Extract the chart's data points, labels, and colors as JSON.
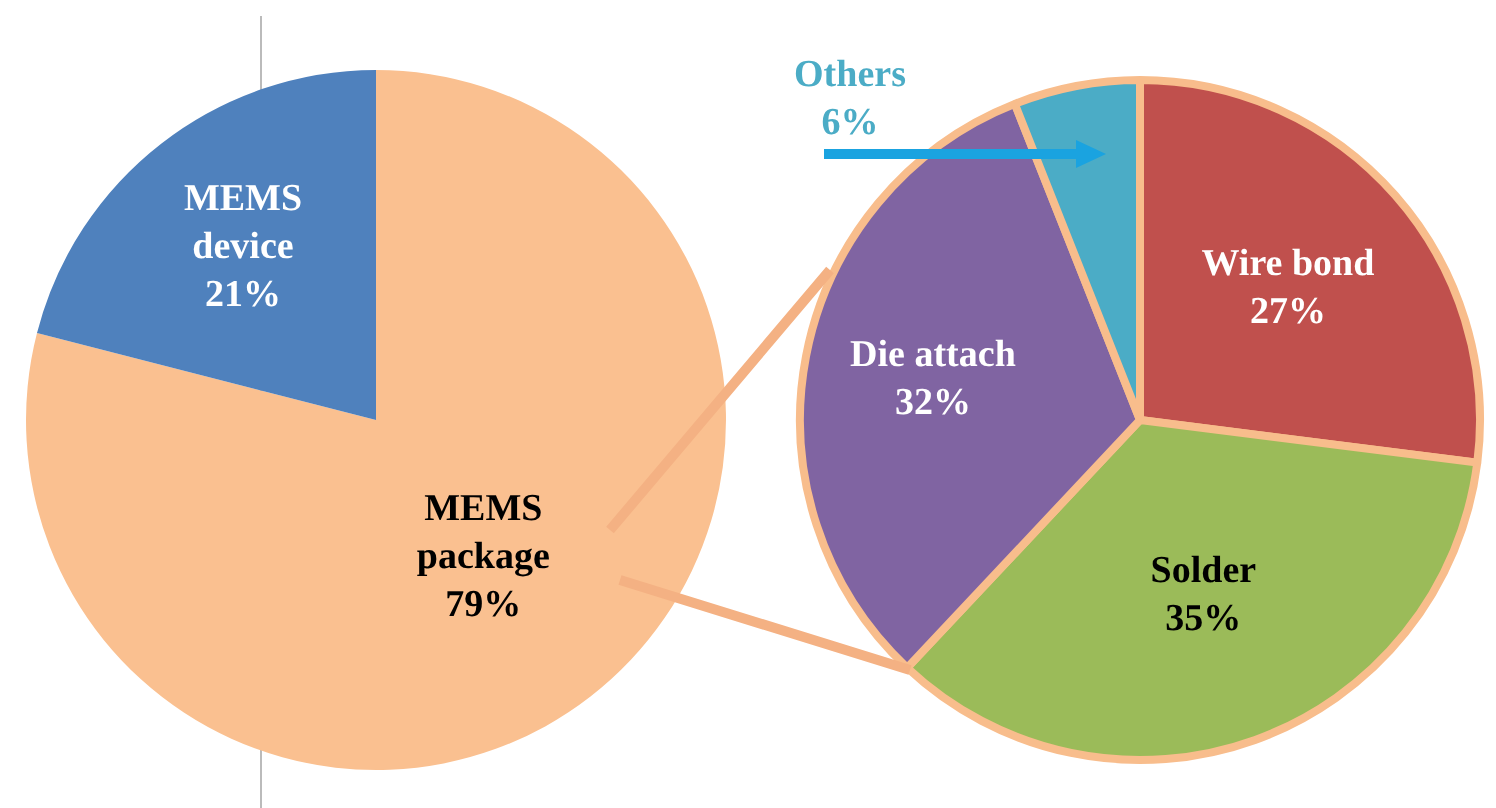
{
  "chart_data": [
    {
      "type": "pie",
      "categories": [
        "MEMS package",
        "MEMS device"
      ],
      "values": [
        79,
        21
      ],
      "colors": [
        "#fac090",
        "#4f81bd"
      ],
      "value_labels": [
        "79%",
        "21%"
      ],
      "legend": false
    },
    {
      "type": "pie",
      "categories": [
        "Wire bond",
        "Solder",
        "Die attach",
        "Others"
      ],
      "values": [
        27,
        35,
        32,
        6
      ],
      "colors": [
        "#c0504d",
        "#9bbb59",
        "#8064a2",
        "#4bacc6"
      ],
      "value_labels": [
        "27%",
        "35%",
        "32%",
        "6%"
      ],
      "legend": false
    }
  ]
}
